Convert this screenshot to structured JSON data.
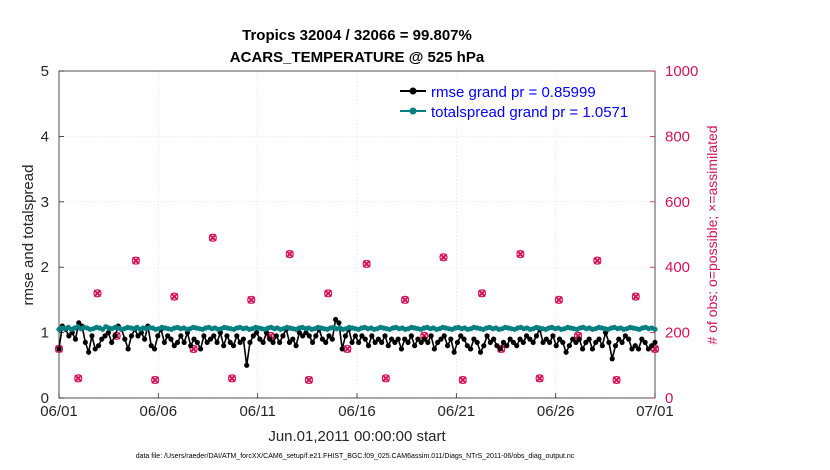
{
  "chart_data": {
    "type": "line",
    "title": "Tropics 32004 / 32066 = 99.807%",
    "subtitle": "ACARS_TEMPERATURE @ 525 hPa",
    "xlabel": "Jun.01,2011 00:00:00 start",
    "ylabel_left": "rmse and totalspread",
    "ylabel_right": "# of obs: o=possible; ×=assimilated",
    "footnote": "data file: /Users/raeder/DAI/ATM_forcXX/CAM6_setup/f.e21.FHIST_BGC.f09_025.CAM6assim.011/Diags_NTrS_2011-06/obs_diag_output.nc",
    "xlim": [
      0,
      30
    ],
    "ylim_left": [
      0,
      5
    ],
    "ylim_right": [
      0,
      1000
    ],
    "x_ticks": [
      0,
      5,
      10,
      15,
      20,
      25,
      30
    ],
    "x_tick_labels": [
      "06/01",
      "06/06",
      "06/11",
      "06/16",
      "06/21",
      "06/26",
      "07/01"
    ],
    "y_ticks_left": [
      0,
      1,
      2,
      3,
      4,
      5
    ],
    "y_tick_labels_left": [
      "0",
      "1",
      "2",
      "3",
      "4",
      "5"
    ],
    "y_ticks_right": [
      0,
      200,
      400,
      600,
      800,
      1000
    ],
    "y_tick_labels_right": [
      "0",
      "200",
      "400",
      "600",
      "800",
      "1000"
    ],
    "legend_location": "top-right",
    "series": [
      {
        "name": "rmse grand pr = 0.85999",
        "axis": "left",
        "color": "#000000",
        "marker": "circle",
        "values": [
          0.75,
          1.1,
          1.05,
          0.95,
          1.0,
          0.9,
          1.15,
          1.1,
          0.85,
          0.7,
          0.95,
          0.75,
          0.8,
          0.9,
          0.95,
          1.0,
          0.85,
          0.95,
          1.1,
          1.05,
          0.9,
          0.75,
          0.95,
          1.05,
          0.95,
          1.0,
          0.9,
          1.1,
          0.8,
          0.75,
          0.95,
          1.05,
          0.85,
          0.95,
          0.9,
          0.8,
          0.85,
          0.95,
          0.85,
          1.0,
          0.8,
          0.9,
          0.85,
          0.75,
          0.95,
          0.85,
          0.9,
          0.95,
          0.85,
          1.0,
          0.8,
          0.95,
          0.85,
          0.8,
          0.95,
          0.85,
          0.9,
          0.5,
          0.85,
          0.95,
          1.0,
          0.9,
          0.85,
          1.0,
          0.9,
          0.85,
          0.95,
          0.85,
          0.95,
          1.05,
          0.85,
          0.9,
          0.8,
          1.0,
          0.95,
          1.0,
          0.95,
          0.85,
          0.95,
          1.05,
          0.9,
          0.85,
          0.95,
          0.9,
          1.2,
          1.15,
          0.75,
          0.95,
          1.05,
          0.85,
          0.95,
          0.85,
          0.95,
          0.9,
          0.8,
          0.95,
          0.85,
          0.9,
          0.85,
          0.95,
          0.8,
          0.9,
          0.85,
          0.9,
          0.75,
          0.9,
          0.85,
          0.95,
          0.8,
          0.9,
          0.85,
          0.9,
          0.85,
          0.95,
          0.75,
          0.85,
          0.9,
          0.95,
          0.8,
          0.9,
          0.7,
          0.85,
          0.95,
          0.9,
          0.8,
          0.75,
          0.9,
          0.85,
          0.7,
          0.8,
          0.95,
          0.85,
          0.9,
          0.8,
          0.75,
          0.85,
          0.8,
          0.9,
          0.85,
          0.8,
          0.9,
          0.85,
          0.95,
          0.9,
          0.85,
          0.95,
          1.05,
          0.85,
          0.9,
          0.85,
          0.95,
          0.8,
          0.9,
          0.85,
          0.7,
          0.8,
          0.9,
          0.85,
          0.9,
          0.75,
          0.85,
          0.9,
          0.75,
          0.85,
          0.9,
          0.8,
          1.0,
          0.85,
          0.6,
          0.8,
          0.9,
          0.85,
          0.95,
          0.9,
          0.75,
          0.8,
          0.75,
          0.9,
          0.85,
          0.75,
          0.8,
          0.85
        ]
      },
      {
        "name": "totalspread grand pr = 1.0571",
        "axis": "left",
        "color": "#008080",
        "marker": "circle",
        "values": [
          1.05,
          1.07,
          1.06,
          1.08,
          1.05,
          1.07,
          1.09,
          1.06,
          1.08,
          1.07,
          1.05,
          1.06,
          1.08,
          1.07,
          1.05,
          1.09,
          1.07,
          1.06,
          1.08,
          1.07,
          1.05,
          1.06,
          1.08,
          1.07,
          1.06,
          1.08,
          1.05,
          1.07,
          1.06,
          1.08,
          1.07,
          1.05,
          1.06,
          1.08,
          1.07,
          1.06,
          1.05,
          1.07,
          1.08,
          1.06,
          1.07,
          1.05,
          1.06,
          1.08,
          1.07,
          1.06,
          1.05,
          1.07,
          1.08,
          1.06,
          1.07,
          1.05,
          1.06,
          1.08,
          1.07,
          1.06,
          1.05,
          1.07,
          1.08,
          1.06,
          1.07,
          1.05,
          1.06,
          1.08,
          1.07,
          1.06,
          1.05,
          1.07,
          1.08,
          1.06,
          1.07,
          1.05,
          1.06,
          1.08,
          1.07,
          1.06,
          1.05,
          1.07,
          1.08,
          1.06,
          1.07,
          1.05,
          1.06,
          1.08,
          1.07,
          1.06,
          1.05,
          1.07,
          1.08,
          1.06,
          1.07,
          1.05,
          1.06,
          1.08,
          1.07,
          1.06,
          1.05,
          1.07,
          1.08,
          1.06,
          1.07,
          1.05,
          1.06,
          1.08,
          1.07,
          1.06,
          1.05,
          1.07,
          1.08,
          1.06,
          1.07,
          1.05,
          1.06,
          1.08,
          1.07,
          1.06,
          1.05,
          1.07,
          1.08,
          1.06,
          1.07,
          1.05,
          1.06,
          1.08,
          1.07,
          1.06,
          1.05,
          1.07,
          1.08,
          1.06,
          1.07,
          1.05,
          1.06,
          1.08,
          1.07,
          1.06,
          1.05,
          1.07,
          1.08,
          1.06,
          1.07,
          1.05,
          1.06,
          1.08,
          1.07,
          1.06,
          1.05,
          1.07,
          1.08,
          1.06,
          1.07,
          1.05,
          1.06,
          1.08,
          1.07,
          1.06,
          1.05,
          1.07,
          1.08,
          1.06,
          1.07,
          1.05,
          1.06,
          1.08,
          1.07,
          1.06,
          1.05,
          1.07,
          1.08,
          1.06,
          1.07,
          1.05,
          1.06,
          1.08,
          1.07,
          1.06,
          1.05,
          1.07,
          1.08,
          1.06,
          1.07,
          1.05,
          1.06,
          1.08,
          1.07,
          1.06,
          1.05,
          1.07,
          1.08,
          1.06,
          1.07,
          1.05
        ]
      }
    ],
    "obs_counts": {
      "axis": "right",
      "color": "#d4145a",
      "marker_possible": "circle",
      "marker_assimilated": "x",
      "pattern_possible": [
        150,
        60,
        320,
        190,
        420,
        55,
        310,
        150,
        490,
        60,
        300,
        190,
        440,
        55,
        320,
        150,
        410,
        60,
        300,
        190,
        430,
        55,
        320,
        150,
        440,
        60,
        300,
        190,
        420,
        55,
        310,
        150
      ],
      "pattern_assimilated": [
        150,
        60,
        320,
        190,
        420,
        55,
        310,
        150,
        490,
        60,
        300,
        190,
        440,
        55,
        320,
        150,
        410,
        60,
        300,
        190,
        430,
        55,
        320,
        150,
        440,
        60,
        300,
        190,
        420,
        55,
        310,
        150
      ]
    }
  }
}
